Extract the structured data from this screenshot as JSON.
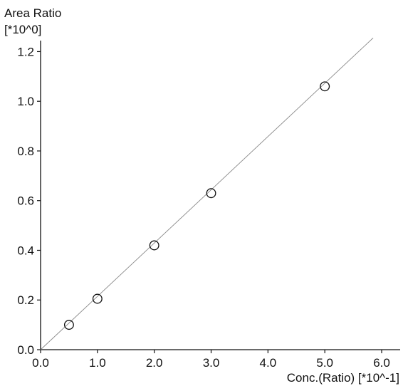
{
  "chart_data": {
    "type": "scatter",
    "ylabel_line1": "Area Ratio",
    "ylabel_line2": "[*10^0]",
    "xlabel": "Conc.(Ratio) [*10^-1]",
    "xlim": [
      0,
      6.2
    ],
    "ylim": [
      0,
      1.25
    ],
    "x_ticks": [
      0.0,
      1.0,
      2.0,
      3.0,
      4.0,
      5.0,
      6.0
    ],
    "x_tick_labels": [
      "0.0",
      "1.0",
      "2.0",
      "3.0",
      "4.0",
      "5.0",
      "6.0"
    ],
    "y_ticks": [
      0.0,
      0.2,
      0.4,
      0.6,
      0.8,
      1.0,
      1.2
    ],
    "y_tick_labels": [
      "0.0",
      "0.2",
      "0.4",
      "0.6",
      "0.8",
      "1.0",
      "1.2"
    ],
    "grid": false,
    "points": [
      {
        "x": 0.5,
        "y": 0.1
      },
      {
        "x": 1.0,
        "y": 0.205
      },
      {
        "x": 2.0,
        "y": 0.42
      },
      {
        "x": 3.0,
        "y": 0.63
      },
      {
        "x": 5.0,
        "y": 1.06
      }
    ],
    "fit_line": {
      "x": [
        0.0,
        5.85
      ],
      "y": [
        0.0,
        1.255
      ]
    }
  }
}
